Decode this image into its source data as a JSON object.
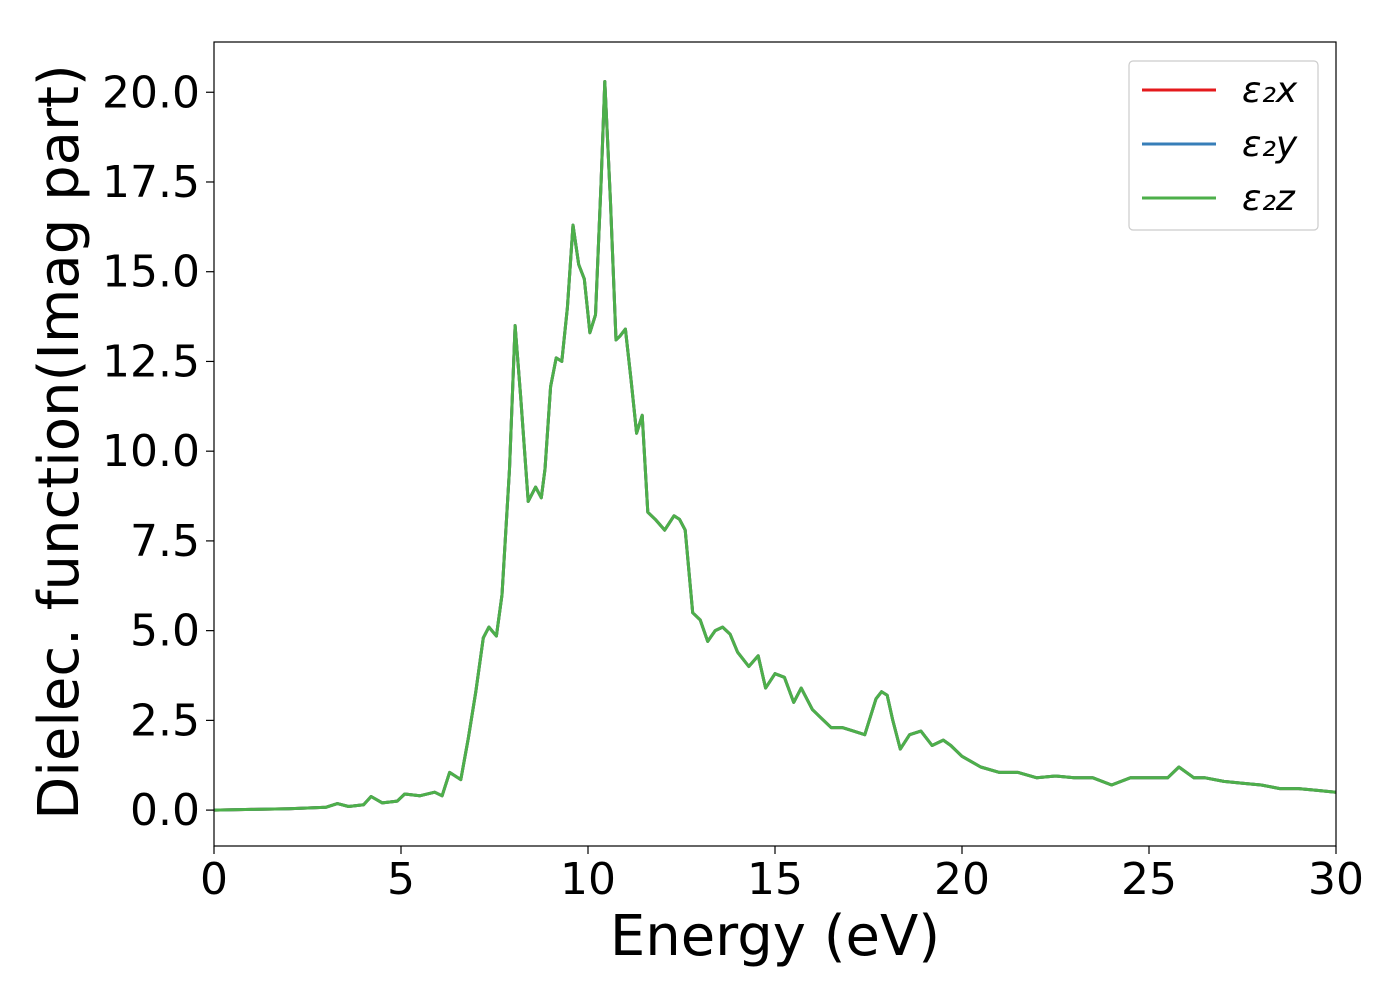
{
  "chart_data": {
    "type": "line",
    "xlabel": "Energy (eV)",
    "ylabel": "Dielec. function(Imag part)",
    "xlim": [
      0,
      30
    ],
    "ylim": [
      -1.0,
      21.4
    ],
    "xticks": [
      0,
      5,
      10,
      15,
      20,
      25,
      30
    ],
    "xtick_labels": [
      "0",
      "5",
      "10",
      "15",
      "20",
      "25",
      "30"
    ],
    "yticks": [
      0,
      2.5,
      5,
      7.5,
      10,
      12.5,
      15,
      17.5,
      20
    ],
    "ytick_labels": [
      "0.0",
      "2.5",
      "5.0",
      "7.5",
      "10.0",
      "12.5",
      "15.0",
      "17.5",
      "20.0"
    ],
    "grid": false,
    "legend_position": "top-right",
    "x": [
      0,
      1,
      2,
      3,
      3.3,
      3.6,
      4.0,
      4.2,
      4.5,
      4.9,
      5.1,
      5.5,
      5.9,
      6.1,
      6.3,
      6.6,
      6.8,
      7.0,
      7.2,
      7.35,
      7.55,
      7.7,
      7.9,
      8.05,
      8.2,
      8.4,
      8.6,
      8.75,
      8.85,
      9.0,
      9.15,
      9.3,
      9.45,
      9.6,
      9.75,
      9.9,
      10.05,
      10.2,
      10.35,
      10.45,
      10.6,
      10.75,
      10.85,
      11.0,
      11.15,
      11.3,
      11.45,
      11.6,
      11.8,
      12.05,
      12.3,
      12.45,
      12.6,
      12.8,
      13.0,
      13.2,
      13.4,
      13.6,
      13.8,
      14.0,
      14.3,
      14.55,
      14.75,
      15.0,
      15.25,
      15.5,
      15.7,
      16.0,
      16.2,
      16.5,
      16.8,
      17.1,
      17.4,
      17.7,
      17.85,
      18.0,
      18.15,
      18.35,
      18.6,
      18.9,
      19.2,
      19.5,
      19.7,
      20.0,
      20.5,
      21.0,
      21.5,
      22.0,
      22.5,
      23.0,
      23.5,
      24.0,
      24.5,
      25.0,
      25.5,
      25.8,
      26.2,
      26.5,
      27.0,
      27.5,
      28.0,
      28.5,
      29.0,
      29.5,
      30.0
    ],
    "series": [
      {
        "name": "ε₂x",
        "color": "#e41a1c",
        "values": [
          0.0,
          0.02,
          0.04,
          0.08,
          0.18,
          0.1,
          0.15,
          0.38,
          0.2,
          0.25,
          0.45,
          0.4,
          0.5,
          0.4,
          1.05,
          0.85,
          2.0,
          3.3,
          4.8,
          5.1,
          4.85,
          6.0,
          9.5,
          13.5,
          11.5,
          8.6,
          9.0,
          8.7,
          9.5,
          11.8,
          12.6,
          12.5,
          14.0,
          16.3,
          15.2,
          14.8,
          13.3,
          13.8,
          17.5,
          20.3,
          17.0,
          13.1,
          13.2,
          13.4,
          12.0,
          10.5,
          11.0,
          8.3,
          8.1,
          7.8,
          8.2,
          8.1,
          7.8,
          5.5,
          5.3,
          4.7,
          5.0,
          5.1,
          4.9,
          4.4,
          4.0,
          4.3,
          3.4,
          3.8,
          3.7,
          3.0,
          3.4,
          2.8,
          2.6,
          2.3,
          2.3,
          2.2,
          2.1,
          3.1,
          3.3,
          3.2,
          2.5,
          1.7,
          2.1,
          2.2,
          1.8,
          1.95,
          1.8,
          1.5,
          1.2,
          1.05,
          1.05,
          0.9,
          0.95,
          0.9,
          0.9,
          0.7,
          0.9,
          0.9,
          0.9,
          1.2,
          0.9,
          0.9,
          0.8,
          0.75,
          0.7,
          0.6,
          0.6,
          0.55,
          0.5
        ]
      },
      {
        "name": "ε₂y",
        "color": "#377eb8",
        "values": [
          0.0,
          0.02,
          0.04,
          0.08,
          0.18,
          0.1,
          0.15,
          0.38,
          0.2,
          0.25,
          0.45,
          0.4,
          0.5,
          0.4,
          1.05,
          0.85,
          2.0,
          3.3,
          4.8,
          5.1,
          4.85,
          6.0,
          9.5,
          13.5,
          11.5,
          8.6,
          9.0,
          8.7,
          9.5,
          11.8,
          12.6,
          12.5,
          14.0,
          16.3,
          15.2,
          14.8,
          13.3,
          13.8,
          17.5,
          20.3,
          17.0,
          13.1,
          13.2,
          13.4,
          12.0,
          10.5,
          11.0,
          8.3,
          8.1,
          7.8,
          8.2,
          8.1,
          7.8,
          5.5,
          5.3,
          4.7,
          5.0,
          5.1,
          4.9,
          4.4,
          4.0,
          4.3,
          3.4,
          3.8,
          3.7,
          3.0,
          3.4,
          2.8,
          2.6,
          2.3,
          2.3,
          2.2,
          2.1,
          3.1,
          3.3,
          3.2,
          2.5,
          1.7,
          2.1,
          2.2,
          1.8,
          1.95,
          1.8,
          1.5,
          1.2,
          1.05,
          1.05,
          0.9,
          0.95,
          0.9,
          0.9,
          0.7,
          0.9,
          0.9,
          0.9,
          1.2,
          0.9,
          0.9,
          0.8,
          0.75,
          0.7,
          0.6,
          0.6,
          0.55,
          0.5
        ]
      },
      {
        "name": "ε₂z",
        "color": "#4daf4a",
        "values": [
          0.0,
          0.02,
          0.04,
          0.08,
          0.18,
          0.1,
          0.15,
          0.38,
          0.2,
          0.25,
          0.45,
          0.4,
          0.5,
          0.4,
          1.05,
          0.85,
          2.0,
          3.3,
          4.8,
          5.1,
          4.85,
          6.0,
          9.5,
          13.5,
          11.5,
          8.6,
          9.0,
          8.7,
          9.5,
          11.8,
          12.6,
          12.5,
          14.0,
          16.3,
          15.2,
          14.8,
          13.3,
          13.8,
          17.5,
          20.3,
          17.0,
          13.1,
          13.2,
          13.4,
          12.0,
          10.5,
          11.0,
          8.3,
          8.1,
          7.8,
          8.2,
          8.1,
          7.8,
          5.5,
          5.3,
          4.7,
          5.0,
          5.1,
          4.9,
          4.4,
          4.0,
          4.3,
          3.4,
          3.8,
          3.7,
          3.0,
          3.4,
          2.8,
          2.6,
          2.3,
          2.3,
          2.2,
          2.1,
          3.1,
          3.3,
          3.2,
          2.5,
          1.7,
          2.1,
          2.2,
          1.8,
          1.95,
          1.8,
          1.5,
          1.2,
          1.05,
          1.05,
          0.9,
          0.95,
          0.9,
          0.9,
          0.7,
          0.9,
          0.9,
          0.9,
          1.2,
          0.9,
          0.9,
          0.8,
          0.75,
          0.7,
          0.6,
          0.6,
          0.55,
          0.5
        ]
      }
    ]
  }
}
